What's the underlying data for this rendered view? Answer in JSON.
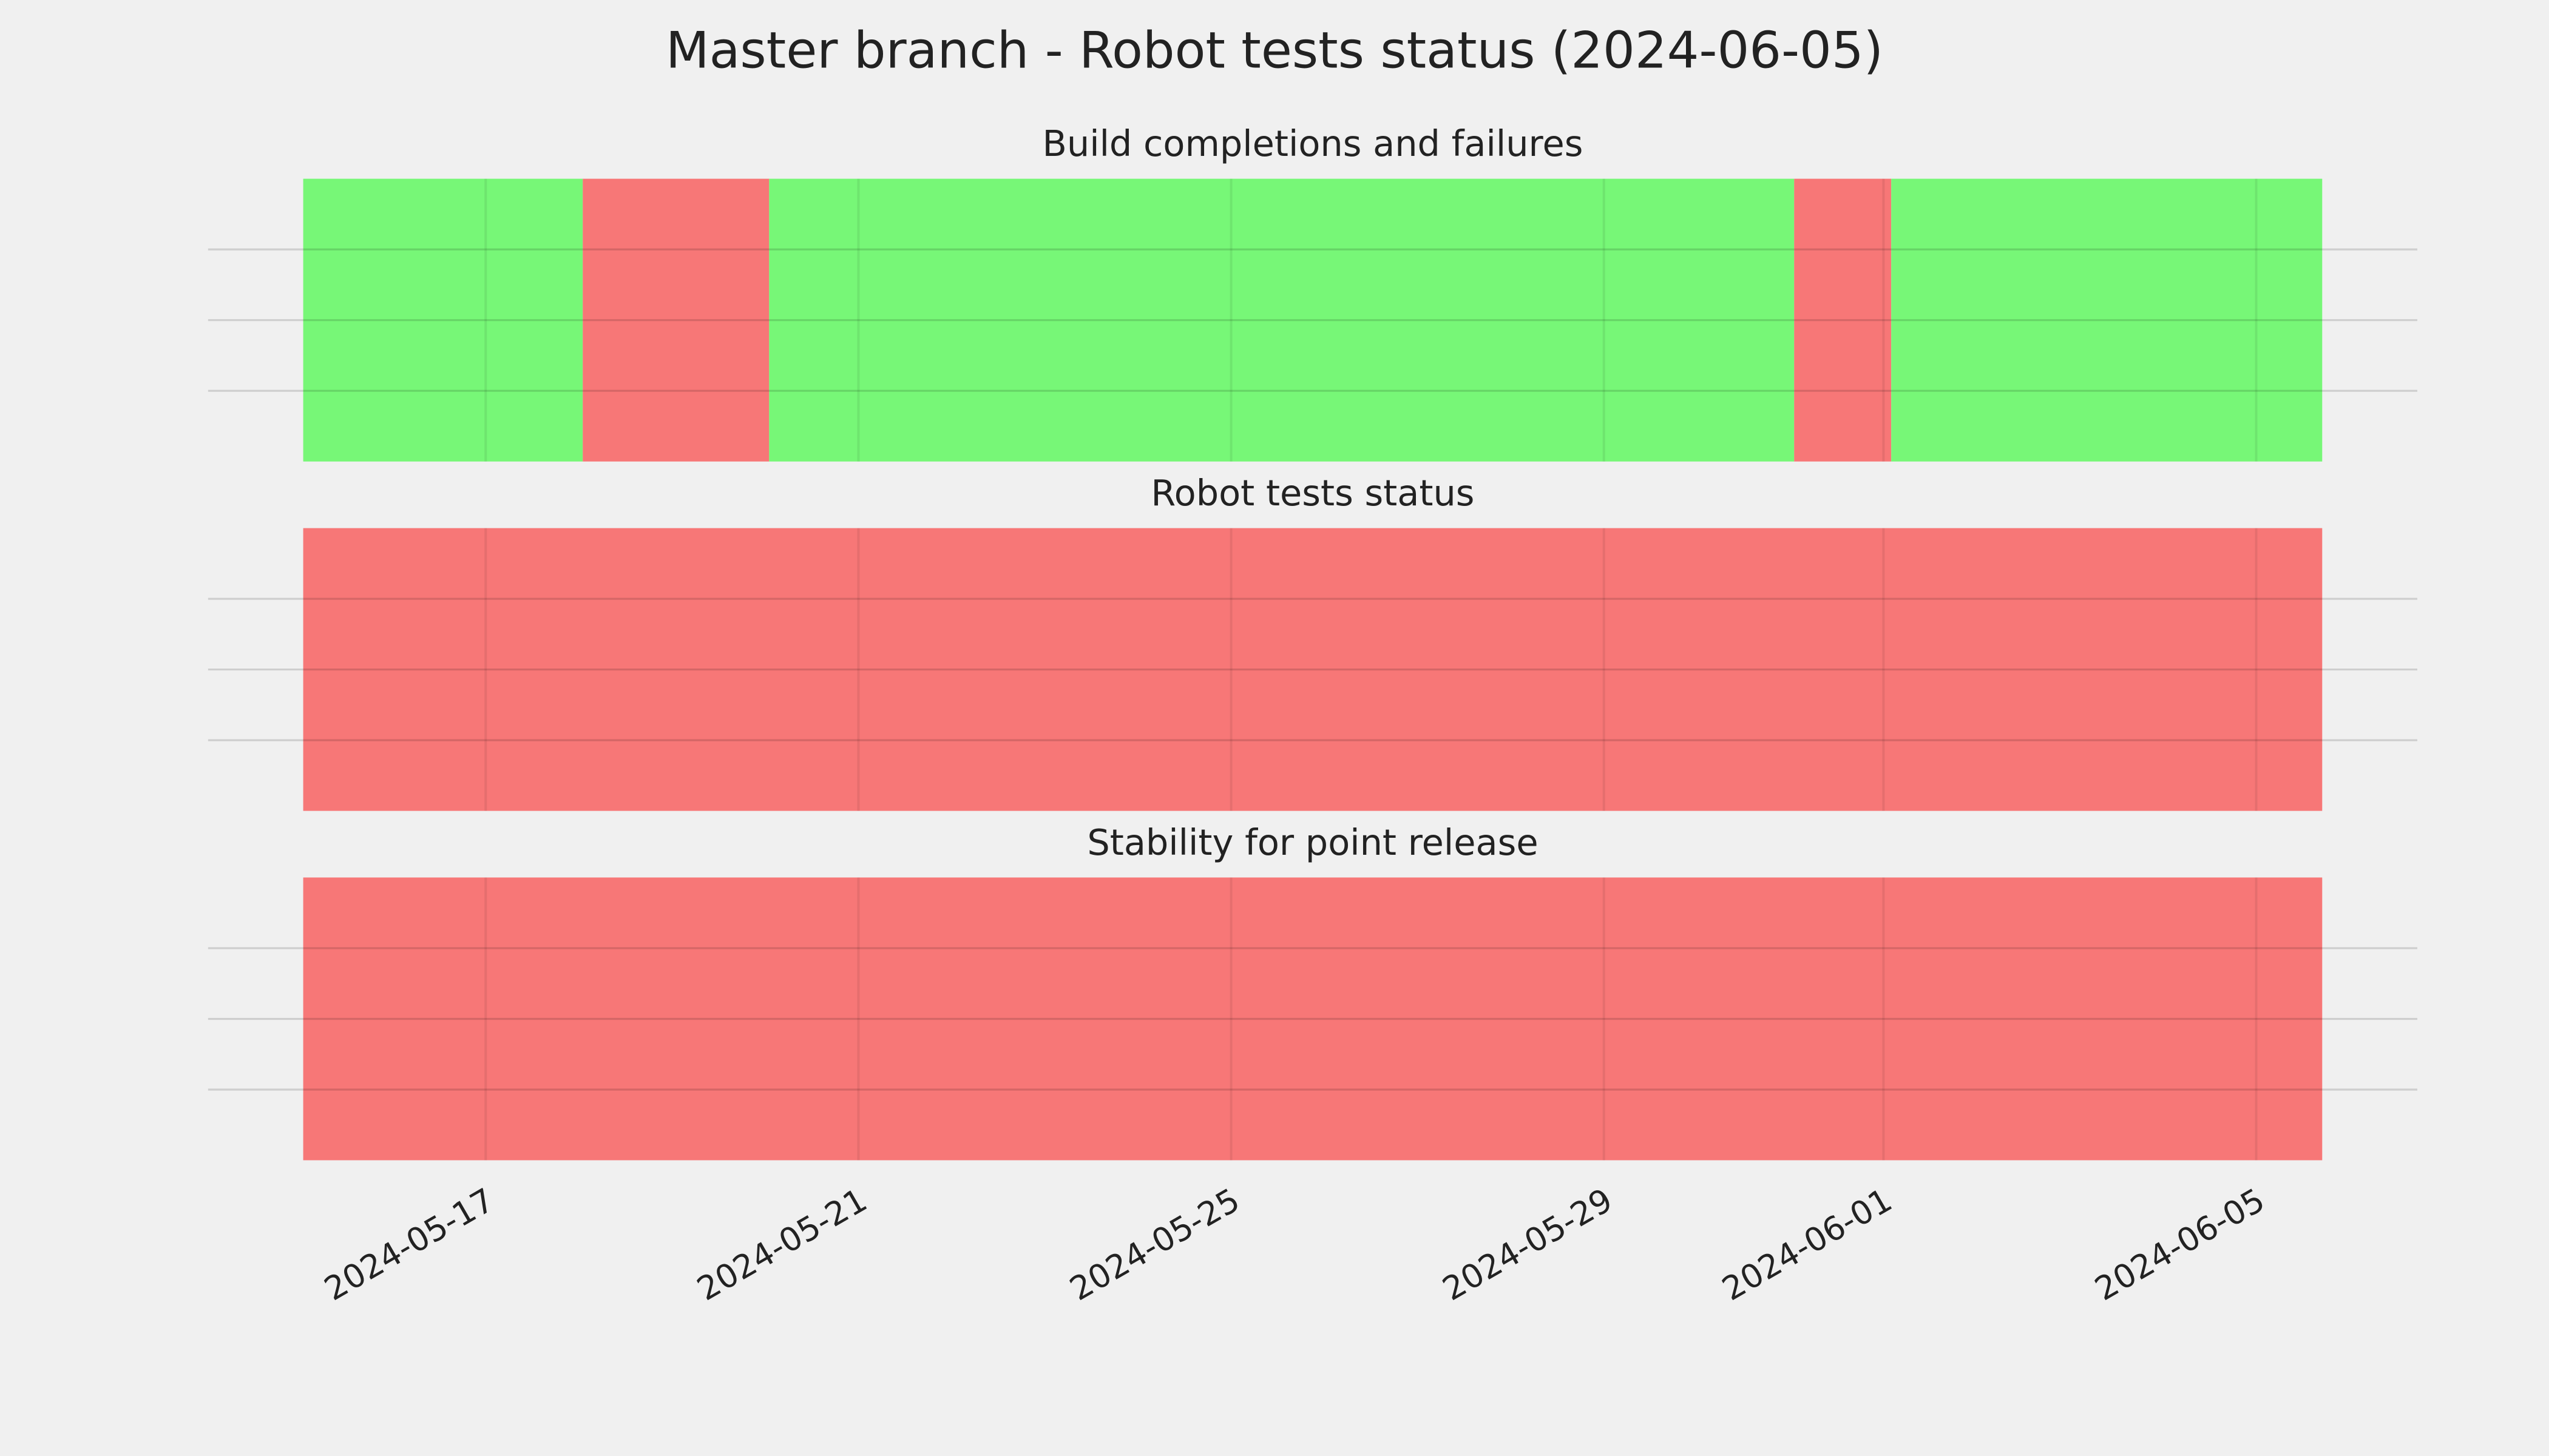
{
  "title": "Master branch - Robot tests status (2024-06-05)",
  "chart_data": [
    {
      "type": "timeline",
      "title": "Build completions and failures",
      "xlim": [
        "2024-05-14T00:30",
        "2024-06-06T17:30"
      ],
      "xticks": [
        "2024-05-17",
        "2024-05-21",
        "2024-05-25",
        "2024-05-29",
        "2024-06-01",
        "2024-06-05"
      ],
      "ylim": [
        0,
        1
      ],
      "yticks": [
        0.25,
        0.5,
        0.75
      ],
      "grid": true,
      "segments": [
        {
          "start": "2024-05-15T01:00",
          "end": "2024-05-18T01:00",
          "color": "#77f777"
        },
        {
          "start": "2024-05-18T01:00",
          "end": "2024-05-20T01:00",
          "color": "#f77777"
        },
        {
          "start": "2024-05-20T01:00",
          "end": "2024-05-31T01:00",
          "color": "#77f777"
        },
        {
          "start": "2024-05-31T01:00",
          "end": "2024-06-01T02:00",
          "color": "#f77777"
        },
        {
          "start": "2024-06-01T02:00",
          "end": "2024-06-05T17:00",
          "color": "#77f777"
        }
      ]
    },
    {
      "type": "timeline",
      "title": "Robot tests status",
      "xlim": [
        "2024-05-14T00:30",
        "2024-06-06T17:30"
      ],
      "xticks": [
        "2024-05-17",
        "2024-05-21",
        "2024-05-25",
        "2024-05-29",
        "2024-06-01",
        "2024-06-05"
      ],
      "ylim": [
        0,
        1
      ],
      "yticks": [
        0.25,
        0.5,
        0.75
      ],
      "grid": true,
      "segments": [
        {
          "start": "2024-05-15T01:00",
          "end": "2024-06-05T17:00",
          "color": "#f77777"
        }
      ]
    },
    {
      "type": "timeline",
      "title": "Stability for point release",
      "xlim": [
        "2024-05-14T00:30",
        "2024-06-06T17:30"
      ],
      "xticks": [
        "2024-05-17",
        "2024-05-21",
        "2024-05-25",
        "2024-05-29",
        "2024-06-01",
        "2024-06-05"
      ],
      "ylim": [
        0,
        1
      ],
      "yticks": [
        0.25,
        0.5,
        0.75
      ],
      "grid": true,
      "segments": [
        {
          "start": "2024-05-15T01:00",
          "end": "2024-06-05T17:00",
          "color": "#f77777"
        }
      ]
    }
  ]
}
